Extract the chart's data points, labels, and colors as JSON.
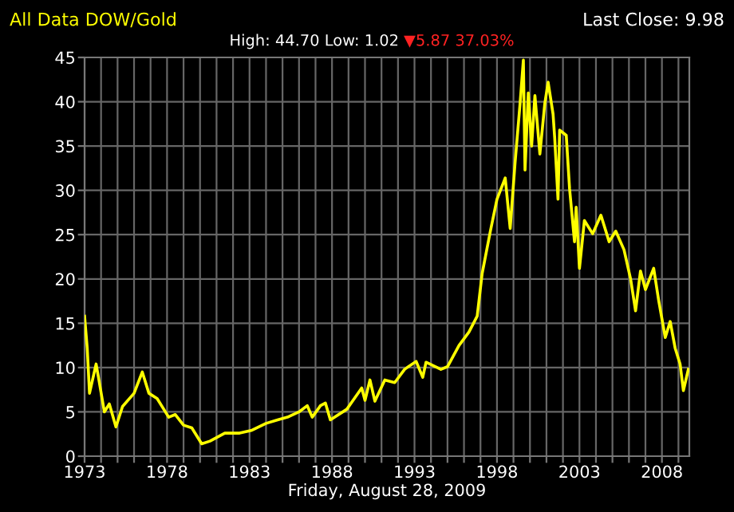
{
  "chart_data": {
    "type": "line",
    "title": "All Data DOW/Gold",
    "subtitle": "High: 44.70 Low: 1.02",
    "annotations": [
      "Last Close: 9.98",
      "▼5.87 37.03%"
    ],
    "xlabel": "Friday, August 28, 2009",
    "series": [
      {
        "color": "#ffff00",
        "x": [
          1973.0,
          1973.16,
          1973.3,
          1973.7,
          1973.87,
          1974.2,
          1974.5,
          1974.9,
          1975.3,
          1976.0,
          1976.5,
          1976.9,
          1977.4,
          1978.1,
          1978.5,
          1979.0,
          1979.5,
          1980.1,
          1980.6,
          1981.5,
          1982.4,
          1983.1,
          1984.0,
          1984.7,
          1985.3,
          1986.0,
          1986.5,
          1986.8,
          1987.3,
          1987.6,
          1987.9,
          1988.9,
          1989.8,
          1990.0,
          1990.3,
          1990.6,
          1991.2,
          1991.8,
          1992.4,
          1993.1,
          1993.5,
          1993.7,
          1994.6,
          1995.0,
          1995.7,
          1996.3,
          1996.8,
          1997.1,
          1997.6,
          1998.0,
          1998.5,
          1998.8,
          1999.1,
          1999.4,
          1999.6,
          1999.7,
          1999.9,
          2000.1,
          2000.3,
          2000.6,
          2000.9,
          2001.1,
          2001.4,
          2001.5,
          2001.7,
          2001.8,
          2002.2,
          2002.4,
          2002.7,
          2002.8,
          2003.0,
          2003.3,
          2003.8,
          2004.3,
          2004.8,
          2005.2,
          2005.7,
          2006.1,
          2006.4,
          2006.7,
          2007.0,
          2007.5,
          2007.8,
          2008.2,
          2008.5,
          2008.8,
          2009.1,
          2009.3,
          2009.6
        ],
        "values": [
          15.8,
          12.2,
          7.1,
          10.4,
          8.6,
          5.0,
          5.9,
          3.3,
          5.6,
          7.1,
          9.5,
          7.1,
          6.5,
          4.4,
          4.7,
          3.5,
          3.2,
          1.4,
          1.7,
          2.6,
          2.6,
          2.9,
          3.7,
          4.1,
          4.4,
          5.0,
          5.7,
          4.4,
          5.7,
          6.0,
          4.1,
          5.3,
          7.7,
          6.3,
          8.6,
          6.2,
          8.6,
          8.3,
          9.8,
          10.7,
          8.9,
          10.6,
          9.8,
          10.1,
          12.5,
          14.0,
          15.8,
          20.6,
          25.4,
          29.0,
          31.4,
          25.7,
          33.2,
          39.8,
          44.7,
          32.3,
          41.0,
          35.0,
          40.7,
          34.1,
          39.8,
          42.2,
          38.6,
          35.9,
          29.0,
          36.8,
          36.2,
          30.2,
          24.2,
          28.1,
          21.2,
          26.6,
          25.1,
          27.2,
          24.2,
          25.4,
          23.3,
          20.0,
          16.4,
          20.9,
          18.8,
          21.2,
          17.6,
          13.4,
          15.2,
          12.2,
          10.4,
          7.4,
          9.8
        ]
      }
    ],
    "xlim": [
      1973,
      2009.66
    ],
    "ylim": [
      0,
      45
    ],
    "xticks": [
      1973,
      {
        "value": 1974,
        "label": null
      },
      {
        "value": 1975,
        "label": null
      },
      {
        "value": 1976,
        "label": null
      },
      {
        "value": 1977,
        "label": null
      },
      1978,
      {
        "value": 1979,
        "label": null
      },
      {
        "value": 1980,
        "label": null
      },
      {
        "value": 1981,
        "label": null
      },
      {
        "value": 1982,
        "label": null
      },
      1983,
      {
        "value": 1984,
        "label": null
      },
      {
        "value": 1985,
        "label": null
      },
      {
        "value": 1986,
        "label": null
      },
      {
        "value": 1987,
        "label": null
      },
      1988,
      {
        "value": 1989,
        "label": null
      },
      {
        "value": 1990,
        "label": null
      },
      {
        "value": 1991,
        "label": null
      },
      {
        "value": 1992,
        "label": null
      },
      1993,
      {
        "value": 1994,
        "label": null
      },
      {
        "value": 1995,
        "label": null
      },
      {
        "value": 1996,
        "label": null
      },
      {
        "value": 1997,
        "label": null
      },
      1998,
      {
        "value": 1999,
        "label": null
      },
      {
        "value": 2000,
        "label": null
      },
      {
        "value": 2001,
        "label": null
      },
      {
        "value": 2002,
        "label": null
      },
      2003,
      {
        "value": 2004,
        "label": null
      },
      {
        "value": 2005,
        "label": null
      },
      {
        "value": 2006,
        "label": null
      },
      {
        "value": 2007,
        "label": null
      },
      2008,
      {
        "value": 2009,
        "label": null
      }
    ],
    "yticks": [
      0,
      5,
      10,
      15,
      20,
      25,
      30,
      35,
      40,
      45
    ],
    "grid": true,
    "legend": false,
    "marker": "none",
    "line_style": "solid"
  }
}
